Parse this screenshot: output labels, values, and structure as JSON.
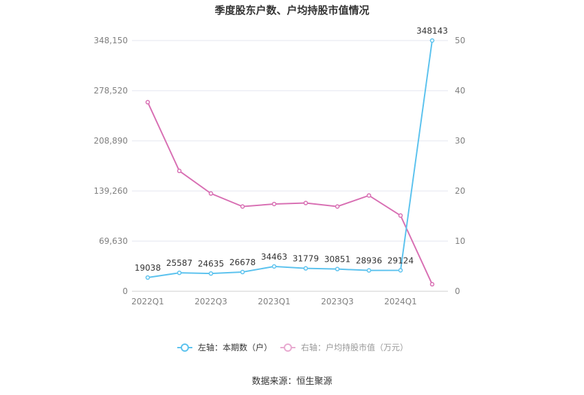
{
  "chart_data": {
    "type": "line",
    "title": "季度股东户数、户均持股市值情况",
    "categories": [
      "2022Q1",
      "2022Q2",
      "2022Q3",
      "2022Q4",
      "2023Q1",
      "2023Q2",
      "2023Q3",
      "2023Q4",
      "2024Q1",
      "2024Q2"
    ],
    "x_tick_labels": [
      "2022Q1",
      "2022Q3",
      "2023Q1",
      "2023Q3",
      "2024Q1"
    ],
    "left_axis": {
      "min": 0,
      "max": 348150,
      "ticks": [
        "0",
        "69,630",
        "139,260",
        "208,890",
        "278,520",
        "348,150"
      ]
    },
    "right_axis": {
      "min": 0,
      "max": 50,
      "ticks": [
        "0",
        "10",
        "20",
        "30",
        "40",
        "50"
      ]
    },
    "series": [
      {
        "name": "左轴：本期数（户）",
        "axis": "left",
        "color": "#5bc2ee",
        "values": [
          19038,
          25587,
          24635,
          26678,
          34463,
          31779,
          30851,
          28936,
          29124,
          348143
        ],
        "labels": [
          "19038",
          "25587",
          "24635",
          "26678",
          "34463",
          "31779",
          "30851",
          "28936",
          "29124",
          "348143"
        ]
      },
      {
        "name": "右轴：户均持股市值（万元）",
        "axis": "right",
        "color": "#d86fb3",
        "values": [
          37.7,
          24.0,
          19.5,
          16.9,
          17.4,
          17.6,
          16.9,
          19.1,
          15.1,
          1.4
        ]
      }
    ],
    "legend_position": "bottom",
    "grid": true
  },
  "source": "数据来源：恒生聚源"
}
